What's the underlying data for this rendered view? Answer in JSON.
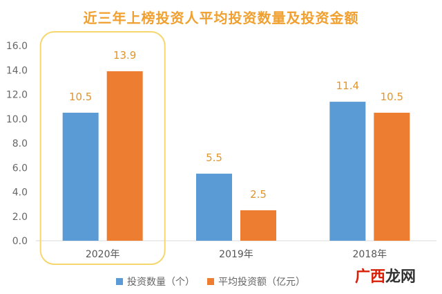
{
  "chart_data": {
    "type": "bar",
    "title": "近三年上榜投资人平均投资数量及投资金额",
    "categories": [
      "2020年",
      "2019年",
      "2018年"
    ],
    "series": [
      {
        "name": "投资数量（个）",
        "values": [
          10.5,
          5.5,
          11.4
        ],
        "color": "#5b9bd5"
      },
      {
        "name": "平均投资额（亿元）",
        "values": [
          13.9,
          2.5,
          10.5
        ],
        "color": "#ed7d31"
      }
    ],
    "y_ticks": [
      "0.0",
      "2.0",
      "4.0",
      "6.0",
      "8.0",
      "10.0",
      "12.0",
      "14.0",
      "16.0"
    ],
    "ylim": [
      0,
      16
    ],
    "grid": false,
    "legend_position": "bottom",
    "highlight_category": "2020年",
    "highlight_color": "#f5d76e"
  },
  "watermark": {
    "part1": "广西",
    "part2": "龙网"
  }
}
